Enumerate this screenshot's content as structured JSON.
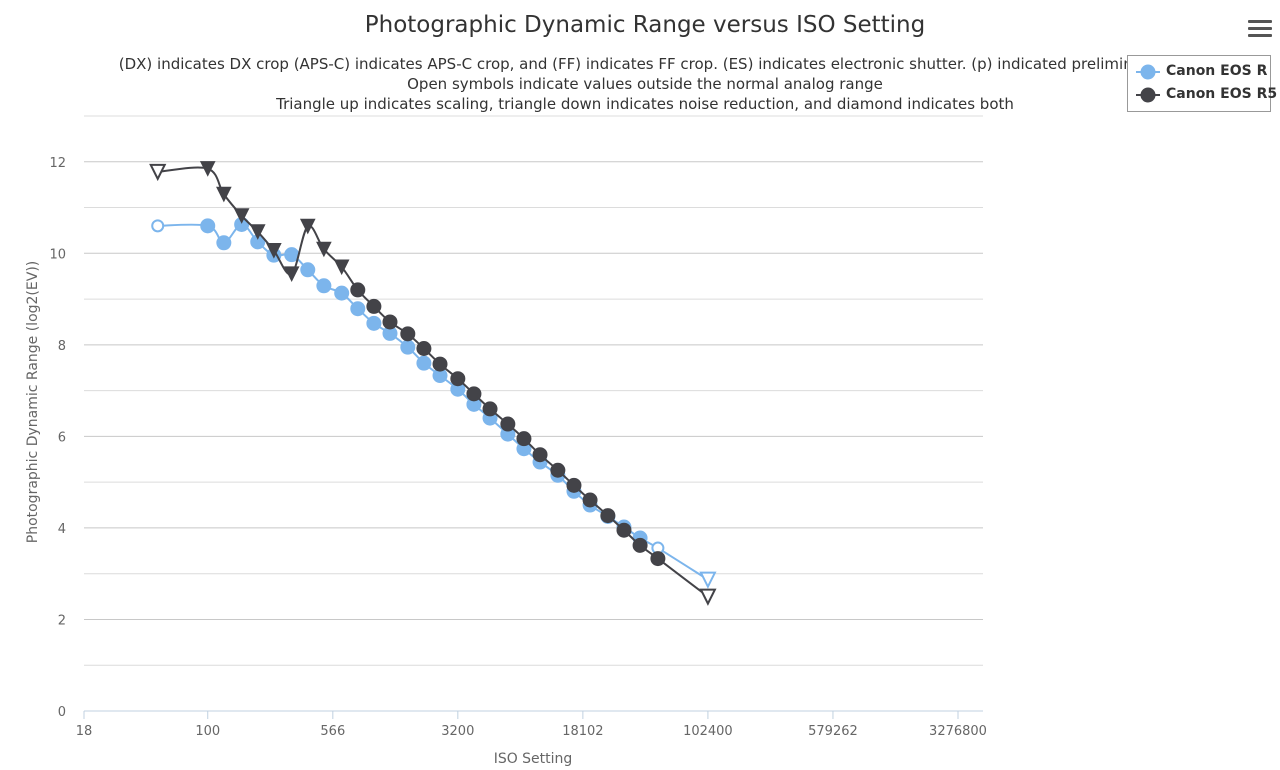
{
  "chart_data": {
    "type": "line",
    "title": "Photographic Dynamic Range versus ISO Setting",
    "subtitles": [
      "(DX) indicates DX crop (APS-C) indicates APS-C crop, and (FF) indicates FF crop. (ES) indicates electronic shutter. (p) indicated preliminary d",
      "Open symbols indicate values outside the normal analog range",
      "Triangle up indicates scaling, triangle down indicates noise reduction, and diamond indicates both"
    ],
    "xlabel": "ISO Setting",
    "ylabel": "Photographic Dynamic Range (log2(EV))",
    "x_scale": "log",
    "xlim": [
      18,
      3276800
    ],
    "ylim": [
      0,
      13
    ],
    "x_tick_labels": [
      "18",
      "100",
      "566",
      "3200",
      "18102",
      "102400",
      "579262",
      "3276800"
    ],
    "y_tick_labels": [
      "0",
      "2",
      "4",
      "6",
      "8",
      "10",
      "12"
    ],
    "grid": true,
    "legend_position": "top-right",
    "series": [
      {
        "name": "Canon EOS R",
        "color": "#7cb5ec",
        "points": [
          {
            "x": 50,
            "y": 10.6,
            "marker": "circle-open"
          },
          {
            "x": 100,
            "y": 10.6,
            "marker": "circle"
          },
          {
            "x": 125,
            "y": 10.23,
            "marker": "circle"
          },
          {
            "x": 160,
            "y": 10.63,
            "marker": "circle"
          },
          {
            "x": 200,
            "y": 10.25,
            "marker": "circle"
          },
          {
            "x": 250,
            "y": 9.96,
            "marker": "circle"
          },
          {
            "x": 320,
            "y": 9.97,
            "marker": "circle"
          },
          {
            "x": 400,
            "y": 9.64,
            "marker": "circle"
          },
          {
            "x": 500,
            "y": 9.29,
            "marker": "circle"
          },
          {
            "x": 640,
            "y": 9.13,
            "marker": "circle"
          },
          {
            "x": 800,
            "y": 8.79,
            "marker": "circle"
          },
          {
            "x": 1000,
            "y": 8.47,
            "marker": "circle"
          },
          {
            "x": 1250,
            "y": 8.25,
            "marker": "circle"
          },
          {
            "x": 1600,
            "y": 7.95,
            "marker": "circle"
          },
          {
            "x": 2000,
            "y": 7.6,
            "marker": "circle"
          },
          {
            "x": 2500,
            "y": 7.33,
            "marker": "circle"
          },
          {
            "x": 3200,
            "y": 7.03,
            "marker": "circle"
          },
          {
            "x": 4000,
            "y": 6.7,
            "marker": "circle"
          },
          {
            "x": 5000,
            "y": 6.4,
            "marker": "circle"
          },
          {
            "x": 6400,
            "y": 6.05,
            "marker": "circle"
          },
          {
            "x": 8000,
            "y": 5.73,
            "marker": "circle"
          },
          {
            "x": 10000,
            "y": 5.44,
            "marker": "circle"
          },
          {
            "x": 12800,
            "y": 5.15,
            "marker": "circle"
          },
          {
            "x": 16000,
            "y": 4.8,
            "marker": "circle"
          },
          {
            "x": 20000,
            "y": 4.5,
            "marker": "circle"
          },
          {
            "x": 25600,
            "y": 4.25,
            "marker": "circle"
          },
          {
            "x": 32000,
            "y": 4.02,
            "marker": "circle"
          },
          {
            "x": 40000,
            "y": 3.78,
            "marker": "circle"
          },
          {
            "x": 51200,
            "y": 3.56,
            "marker": "circle-open"
          },
          {
            "x": 102400,
            "y": 2.87,
            "marker": "triangle-down-open"
          }
        ]
      },
      {
        "name": "Canon EOS R5",
        "color": "#434348",
        "points": [
          {
            "x": 50,
            "y": 11.78,
            "marker": "triangle-down-open"
          },
          {
            "x": 100,
            "y": 11.85,
            "marker": "triangle-down"
          },
          {
            "x": 125,
            "y": 11.29,
            "marker": "triangle-down"
          },
          {
            "x": 160,
            "y": 10.82,
            "marker": "triangle-down"
          },
          {
            "x": 200,
            "y": 10.47,
            "marker": "triangle-down"
          },
          {
            "x": 250,
            "y": 10.06,
            "marker": "triangle-down"
          },
          {
            "x": 320,
            "y": 9.55,
            "marker": "triangle-down"
          },
          {
            "x": 400,
            "y": 10.59,
            "marker": "triangle-down"
          },
          {
            "x": 500,
            "y": 10.09,
            "marker": "triangle-down"
          },
          {
            "x": 640,
            "y": 9.7,
            "marker": "triangle-down"
          },
          {
            "x": 800,
            "y": 9.2,
            "marker": "circle"
          },
          {
            "x": 1000,
            "y": 8.84,
            "marker": "circle"
          },
          {
            "x": 1250,
            "y": 8.5,
            "marker": "circle"
          },
          {
            "x": 1600,
            "y": 8.24,
            "marker": "circle"
          },
          {
            "x": 2000,
            "y": 7.92,
            "marker": "circle"
          },
          {
            "x": 2500,
            "y": 7.58,
            "marker": "circle"
          },
          {
            "x": 3200,
            "y": 7.26,
            "marker": "circle"
          },
          {
            "x": 4000,
            "y": 6.93,
            "marker": "circle"
          },
          {
            "x": 5000,
            "y": 6.6,
            "marker": "circle"
          },
          {
            "x": 6400,
            "y": 6.27,
            "marker": "circle"
          },
          {
            "x": 8000,
            "y": 5.95,
            "marker": "circle"
          },
          {
            "x": 10000,
            "y": 5.6,
            "marker": "circle"
          },
          {
            "x": 12800,
            "y": 5.26,
            "marker": "circle"
          },
          {
            "x": 16000,
            "y": 4.93,
            "marker": "circle"
          },
          {
            "x": 20000,
            "y": 4.61,
            "marker": "circle"
          },
          {
            "x": 25600,
            "y": 4.27,
            "marker": "circle"
          },
          {
            "x": 32000,
            "y": 3.95,
            "marker": "circle"
          },
          {
            "x": 40000,
            "y": 3.62,
            "marker": "circle"
          },
          {
            "x": 51200,
            "y": 3.33,
            "marker": "circle"
          },
          {
            "x": 102400,
            "y": 2.5,
            "marker": "triangle-down-open"
          }
        ]
      }
    ]
  }
}
